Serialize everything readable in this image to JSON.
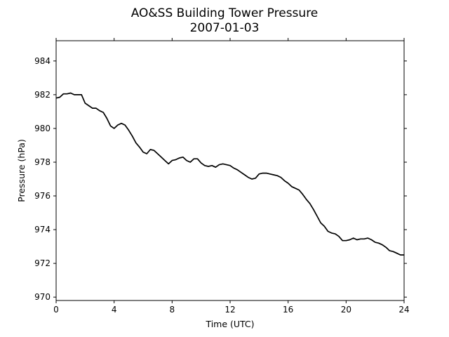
{
  "chart_data": {
    "type": "line",
    "title": "AO&SS Building Tower Pressure",
    "subtitle": "2007-01-03",
    "xlabel": "Time (UTC)",
    "ylabel": "Pressure (hPa)",
    "xlim": [
      0,
      24
    ],
    "ylim": [
      969.8,
      985.2
    ],
    "xticks": [
      0,
      4,
      8,
      12,
      16,
      20,
      24
    ],
    "yticks": [
      970,
      972,
      974,
      976,
      978,
      980,
      982,
      984
    ],
    "grid": false,
    "line_color": "#000000",
    "series": [
      {
        "x": [
          0,
          0.25,
          0.5,
          0.75,
          1.0,
          1.25,
          1.5,
          1.75,
          2.0,
          2.25,
          2.5,
          2.75,
          3.0,
          3.25,
          3.5,
          3.75,
          4.0,
          4.25,
          4.5,
          4.75,
          5.0,
          5.25,
          5.5,
          5.75,
          6.0,
          6.25,
          6.5,
          6.75,
          7.0,
          7.25,
          7.5,
          7.75,
          8.0,
          8.25,
          8.5,
          8.75,
          9.0,
          9.25,
          9.5,
          9.75,
          10.0,
          10.25,
          10.5,
          10.75,
          11.0,
          11.25,
          11.5,
          11.75,
          12.0,
          12.25,
          12.5,
          12.75,
          13.0,
          13.25,
          13.5,
          13.75,
          14.0,
          14.25,
          14.5,
          14.75,
          15.0,
          15.25,
          15.5,
          15.75,
          16.0,
          16.25,
          16.5,
          16.75,
          17.0,
          17.25,
          17.5,
          17.75,
          18.0,
          18.25,
          18.5,
          18.75,
          19.0,
          19.25,
          19.5,
          19.75,
          20.0,
          20.25,
          20.5,
          20.75,
          21.0,
          21.25,
          21.5,
          21.75,
          22.0,
          22.25,
          22.5,
          22.75,
          23.0,
          23.25,
          23.5,
          23.75,
          24.0
        ],
        "values": [
          981.8,
          981.85,
          982.05,
          982.05,
          982.1,
          982.0,
          982.0,
          982.0,
          981.5,
          981.35,
          981.2,
          981.2,
          981.05,
          980.95,
          980.6,
          980.15,
          980.0,
          980.2,
          980.3,
          980.2,
          979.9,
          979.55,
          979.15,
          978.9,
          978.6,
          978.5,
          978.75,
          978.7,
          978.5,
          978.3,
          978.1,
          977.9,
          978.1,
          978.15,
          978.25,
          978.3,
          978.1,
          978.0,
          978.2,
          978.2,
          977.95,
          977.8,
          977.75,
          977.8,
          977.7,
          977.85,
          977.9,
          977.85,
          977.8,
          977.65,
          977.55,
          977.4,
          977.25,
          977.1,
          977.0,
          977.05,
          977.3,
          977.35,
          977.35,
          977.3,
          977.25,
          977.2,
          977.1,
          976.9,
          976.75,
          976.55,
          976.45,
          976.35,
          976.1,
          975.8,
          975.55,
          975.2,
          974.8,
          974.4,
          974.2,
          973.9,
          973.8,
          973.75,
          973.6,
          973.35,
          973.35,
          973.4,
          973.5,
          973.4,
          973.45,
          973.45,
          973.5,
          973.4,
          973.25,
          973.2,
          973.1,
          972.95,
          972.75,
          972.7,
          972.6,
          972.5,
          972.5
        ]
      }
    ]
  }
}
